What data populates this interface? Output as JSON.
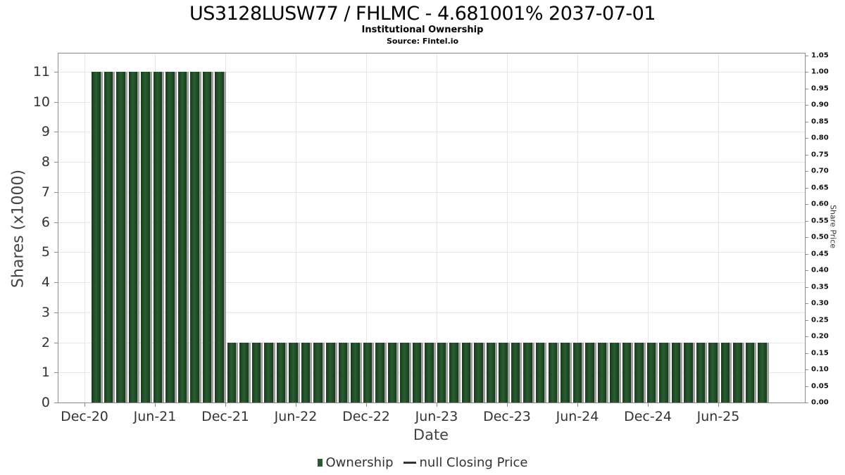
{
  "chart_data": {
    "type": "bar",
    "title": "US3128LUSW77 / FHLMC - 4.681001% 2037-07-01",
    "subtitle": "Institutional Ownership",
    "source": "Source: Fintel.io",
    "xlabel": "Date",
    "ylabel_left": "Shares (x1000)",
    "ylabel_right": "Share Price",
    "grid": true,
    "legend_position": "bottom-center",
    "legend": [
      {
        "label": "Ownership",
        "marker": "square",
        "color": "#2a5a31"
      },
      {
        "label": "null Closing Price",
        "marker": "line",
        "color": "#333333"
      }
    ],
    "bar_color": "#1f4f26",
    "bar_shadow_color": "#9e9e9e",
    "ylim_left": [
      0,
      11.6
    ],
    "ylim_right": [
      0,
      1.055
    ],
    "yticks_left": [
      0,
      1,
      2,
      3,
      4,
      5,
      6,
      7,
      8,
      9,
      10,
      11
    ],
    "yticks_right": [
      "0.00",
      "0.05",
      "0.10",
      "0.15",
      "0.20",
      "0.25",
      "0.30",
      "0.35",
      "0.40",
      "0.45",
      "0.50",
      "0.55",
      "0.60",
      "0.65",
      "0.70",
      "0.75",
      "0.80",
      "0.85",
      "0.90",
      "0.95",
      "1.00",
      "1.05"
    ],
    "xticks": [
      "Dec-20",
      "Jun-21",
      "Dec-21",
      "Jun-22",
      "Dec-22",
      "Jun-23",
      "Dec-23",
      "Jun-24",
      "Dec-24",
      "Jun-25"
    ],
    "categories": [
      "Jan-21",
      "Feb-21",
      "Mar-21",
      "Apr-21",
      "May-21",
      "Jun-21",
      "Jul-21",
      "Aug-21",
      "Sep-21",
      "Oct-21",
      "Nov-21",
      "Dec-21",
      "Jan-22",
      "Feb-22",
      "Mar-22",
      "Apr-22",
      "May-22",
      "Jun-22",
      "Jul-22",
      "Aug-22",
      "Sep-22",
      "Oct-22",
      "Nov-22",
      "Dec-22",
      "Jan-23",
      "Feb-23",
      "Mar-23",
      "Apr-23",
      "May-23",
      "Jun-23",
      "Jul-23",
      "Aug-23",
      "Sep-23",
      "Oct-23",
      "Nov-23",
      "Dec-23",
      "Jan-24",
      "Feb-24",
      "Mar-24",
      "Apr-24",
      "May-24",
      "Jun-24",
      "Jul-24",
      "Aug-24",
      "Sep-24",
      "Oct-24",
      "Nov-24",
      "Dec-24",
      "Jan-25",
      "Feb-25",
      "Mar-25",
      "Apr-25",
      "May-25",
      "Jun-25",
      "Jul-25"
    ],
    "values": [
      11,
      11,
      11,
      11,
      11,
      11,
      11,
      11,
      11,
      11,
      11,
      2,
      2,
      2,
      2,
      2,
      2,
      2,
      2,
      2,
      2,
      2,
      2,
      2,
      2,
      2,
      2,
      2,
      2,
      2,
      2,
      2,
      2,
      2,
      2,
      2,
      2,
      2,
      2,
      2,
      2,
      2,
      2,
      2,
      2,
      2,
      2,
      2,
      2,
      2,
      2,
      2,
      2,
      2,
      2
    ],
    "series_name": "Ownership"
  }
}
